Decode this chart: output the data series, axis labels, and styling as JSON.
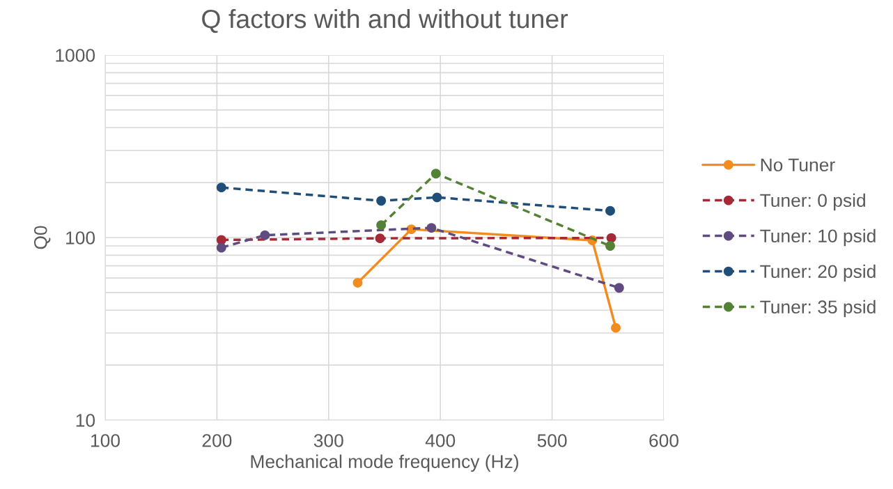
{
  "chart_data": {
    "type": "line",
    "title": "Q factors with and without tuner",
    "xlabel": "Mechanical mode frequency (Hz)",
    "ylabel": "Q0",
    "log": "y",
    "xlim": [
      100,
      600
    ],
    "xticks": [
      100,
      200,
      300,
      400,
      500,
      600
    ],
    "ylim": [
      10,
      1000
    ],
    "yticks": [
      10,
      100,
      1000
    ],
    "grid": true,
    "legend": "right",
    "marker": "circle",
    "series": [
      {
        "name": "No Tuner",
        "color": "#f28c1e",
        "line_style": "solid",
        "x": [
          326,
          374,
          536,
          557
        ],
        "values": [
          56.5,
          111,
          96.5,
          32
        ]
      },
      {
        "name": "Tuner: 0 psid",
        "color": "#a52a35",
        "line_style": "dashed",
        "x": [
          204,
          346,
          553
        ],
        "values": [
          97,
          99,
          99.5
        ]
      },
      {
        "name": "Tuner: 10 psid",
        "color": "#5f4b80",
        "line_style": "dashed",
        "x": [
          204,
          243,
          392,
          560
        ],
        "values": [
          88,
          103,
          113,
          53
        ]
      },
      {
        "name": "Tuner: 20 psid",
        "color": "#1f4e79",
        "line_style": "dashed",
        "x": [
          204,
          347,
          397,
          552
        ],
        "values": [
          188,
          159,
          166,
          140
        ]
      },
      {
        "name": "Tuner: 35 psid",
        "color": "#548235",
        "line_style": "dashed",
        "x": [
          347,
          396,
          552
        ],
        "values": [
          117,
          224,
          90
        ]
      }
    ]
  }
}
